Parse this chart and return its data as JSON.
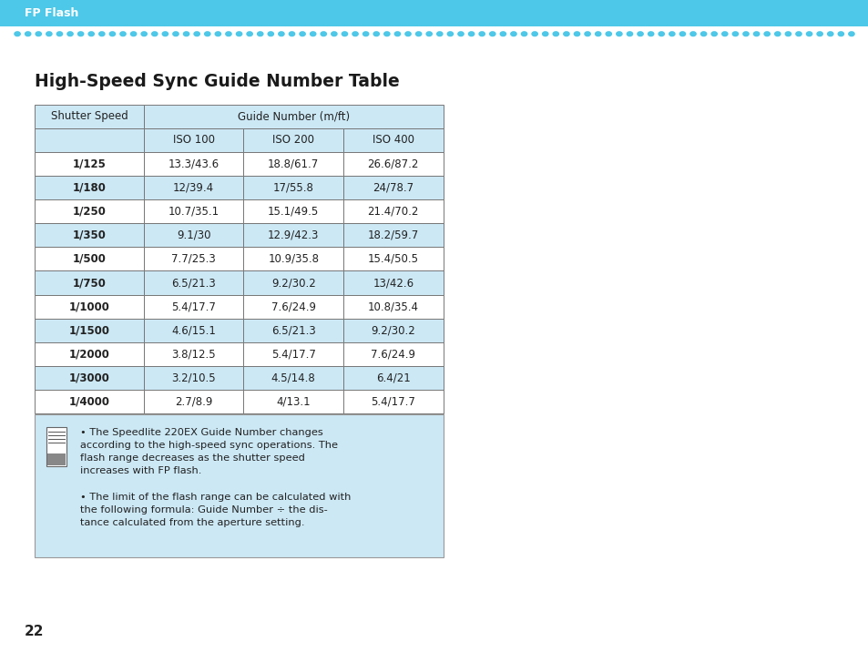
{
  "page_title": "FP Flash",
  "section_title": "High-Speed Sync Guide Number Table",
  "table_data": [
    [
      "Shutter Speed",
      "Guide Number (m/ft)",
      "",
      ""
    ],
    [
      "",
      "ISO 100",
      "ISO 200",
      "ISO 400"
    ],
    [
      "1/125",
      "13.3/43.6",
      "18.8/61.7",
      "26.6/87.2"
    ],
    [
      "1/180",
      "12/39.4",
      "17/55.8",
      "24/78.7"
    ],
    [
      "1/250",
      "10.7/35.1",
      "15.1/49.5",
      "21.4/70.2"
    ],
    [
      "1/350",
      "9.1/30",
      "12.9/42.3",
      "18.2/59.7"
    ],
    [
      "1/500",
      "7.7/25.3",
      "10.9/35.8",
      "15.4/50.5"
    ],
    [
      "1/750",
      "6.5/21.3",
      "9.2/30.2",
      "13/42.6"
    ],
    [
      "1/1000",
      "5.4/17.7",
      "7.6/24.9",
      "10.8/35.4"
    ],
    [
      "1/1500",
      "4.6/15.1",
      "6.5/21.3",
      "9.2/30.2"
    ],
    [
      "1/2000",
      "3.8/12.5",
      "5.4/17.7",
      "7.6/24.9"
    ],
    [
      "1/3000",
      "3.2/10.5",
      "4.5/14.8",
      "6.4/21"
    ],
    [
      "1/4000",
      "2.7/8.9",
      "4/13.1",
      "5.4/17.7"
    ]
  ],
  "header_rows_shaded": [
    0,
    1
  ],
  "shaded_data_rows": [
    1,
    3,
    5,
    7,
    9
  ],
  "note_text_1": "The Speedlite 220EX Guide Number changes\naccording to the high-speed sync operations. The\nflash range decreases as the shutter speed\nincreases with FP flash.",
  "note_text_2": "The limit of the flash range can be calculated with\nthe following formula: Guide Number ÷ the dis-\ntance calculated from the aperture setting.",
  "header_bar_color": "#4dc8e8",
  "table_border_color": "#777777",
  "header_shade_color": "#cce8f5",
  "shaded_row_color": "#cce8f5",
  "note_box_color": "#cce8f5",
  "note_box_border": "#999999",
  "page_num": "22",
  "bg_color": "#ffffff",
  "cell_text_color": "#222222",
  "title_color": "#1a1a1a",
  "dot_line_color": "#4dc8e8",
  "top_bar_text_color": "#ffffff"
}
